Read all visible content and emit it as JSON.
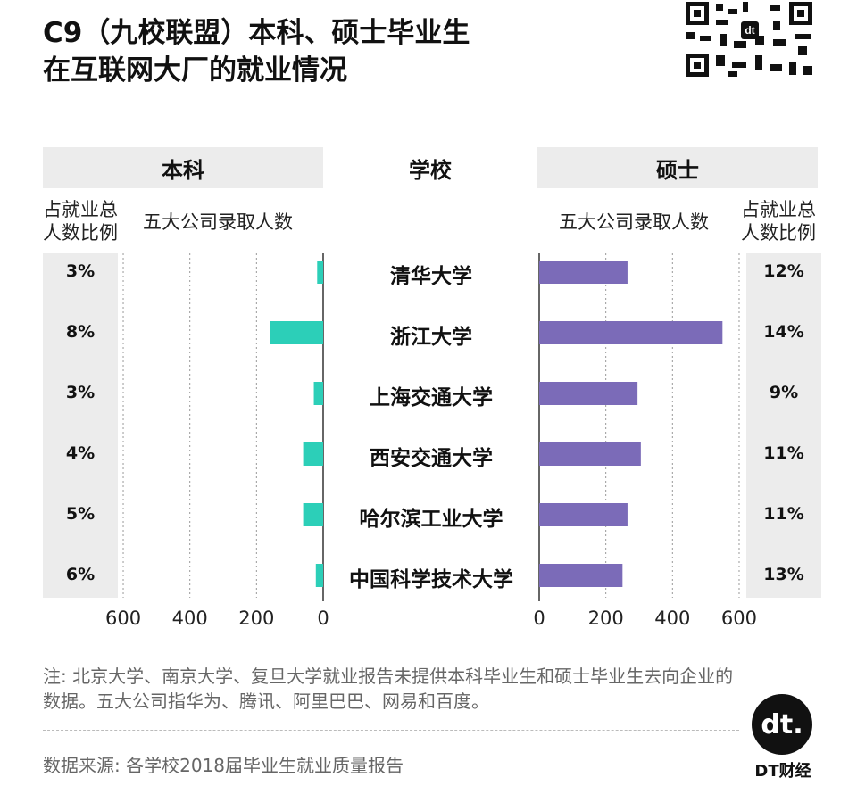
{
  "title_line1": "C9（九校联盟）本科、硕士毕业生",
  "title_line2": "在互联网大厂的就业情况",
  "headers": {
    "left": "本科",
    "center": "学校",
    "right": "硕士"
  },
  "subheaders": {
    "left_pct": [
      "占就业总",
      "人数比例"
    ],
    "left_count": "五大公司录取人数",
    "right_count": "五大公司录取人数",
    "right_pct": [
      "占就业总",
      "人数比例"
    ]
  },
  "colors": {
    "undergrad": "#2ccfb8",
    "master": "#7b6bb8",
    "panel": "#ececec"
  },
  "chart_data": {
    "type": "bar",
    "categories": [
      "清华大学",
      "浙江大学",
      "上海交通大学",
      "西安交通大学",
      "哈尔滨工业大学",
      "中国科学技术大学"
    ],
    "series": [
      {
        "name": "本科",
        "values": [
          18,
          160,
          28,
          60,
          60,
          22
        ],
        "pct_labels": [
          "3%",
          "8%",
          "3%",
          "4%",
          "5%",
          "6%"
        ]
      },
      {
        "name": "硕士",
        "values": [
          265,
          550,
          295,
          305,
          265,
          250
        ],
        "pct_labels": [
          "12%",
          "14%",
          "9%",
          "11%",
          "11%",
          "13%"
        ]
      }
    ],
    "left_ticks": [
      "600",
      "400",
      "200",
      "0"
    ],
    "right_ticks": [
      "0",
      "200",
      "400",
      "600"
    ],
    "xlim": [
      0,
      600
    ],
    "grid": true
  },
  "note": "注: 北京大学、南京大学、复旦大学就业报告未提供本科毕业生和硕士毕业生去向企业的数据。五大公司指华为、腾讯、阿里巴巴、网易和百度。",
  "source": "数据来源: 各学校2018届毕业生就业质量报告",
  "brand": "DT财经",
  "logo_text": "dt."
}
